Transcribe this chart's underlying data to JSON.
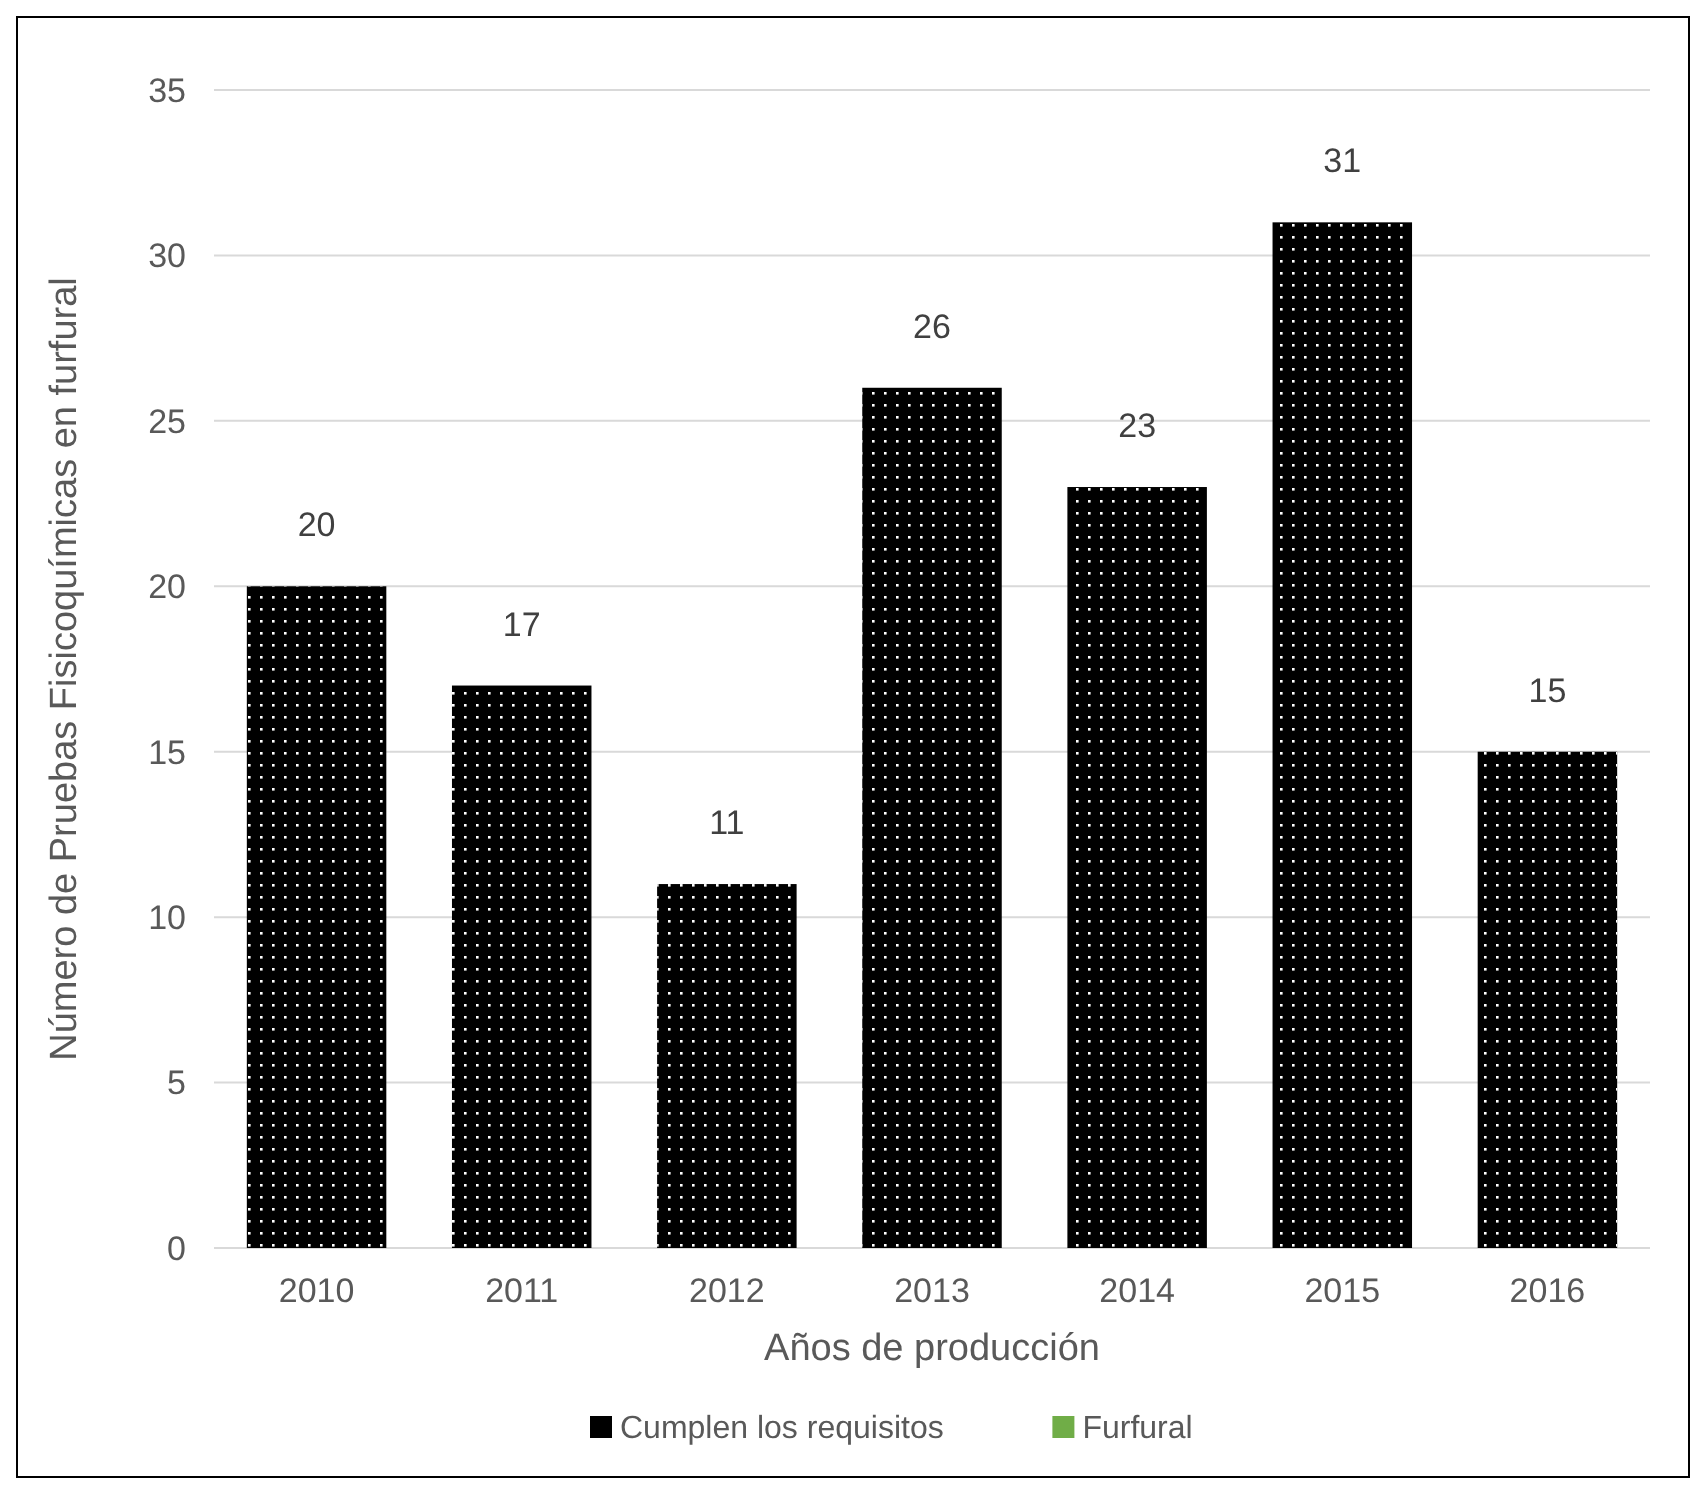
{
  "chart_data": {
    "type": "bar",
    "xlabel": "Años de producción",
    "ylabel": "Número de Pruebas Fisicoquímicas en furfural",
    "categories": [
      "2010",
      "2011",
      "2012",
      "2013",
      "2014",
      "2015",
      "2016"
    ],
    "series": [
      {
        "name": "Cumplen los requisitos",
        "color": "#000000",
        "values": [
          20,
          17,
          11,
          26,
          23,
          31,
          15
        ]
      },
      {
        "name": "Furfural",
        "color": "#70ad47",
        "values": [
          null,
          null,
          null,
          null,
          null,
          null,
          null
        ]
      }
    ],
    "ylim": [
      0,
      35
    ],
    "yticks": [
      0,
      5,
      10,
      15,
      20,
      25,
      30,
      35
    ],
    "grid": "y",
    "legend": "bottom",
    "data_labels": true
  }
}
